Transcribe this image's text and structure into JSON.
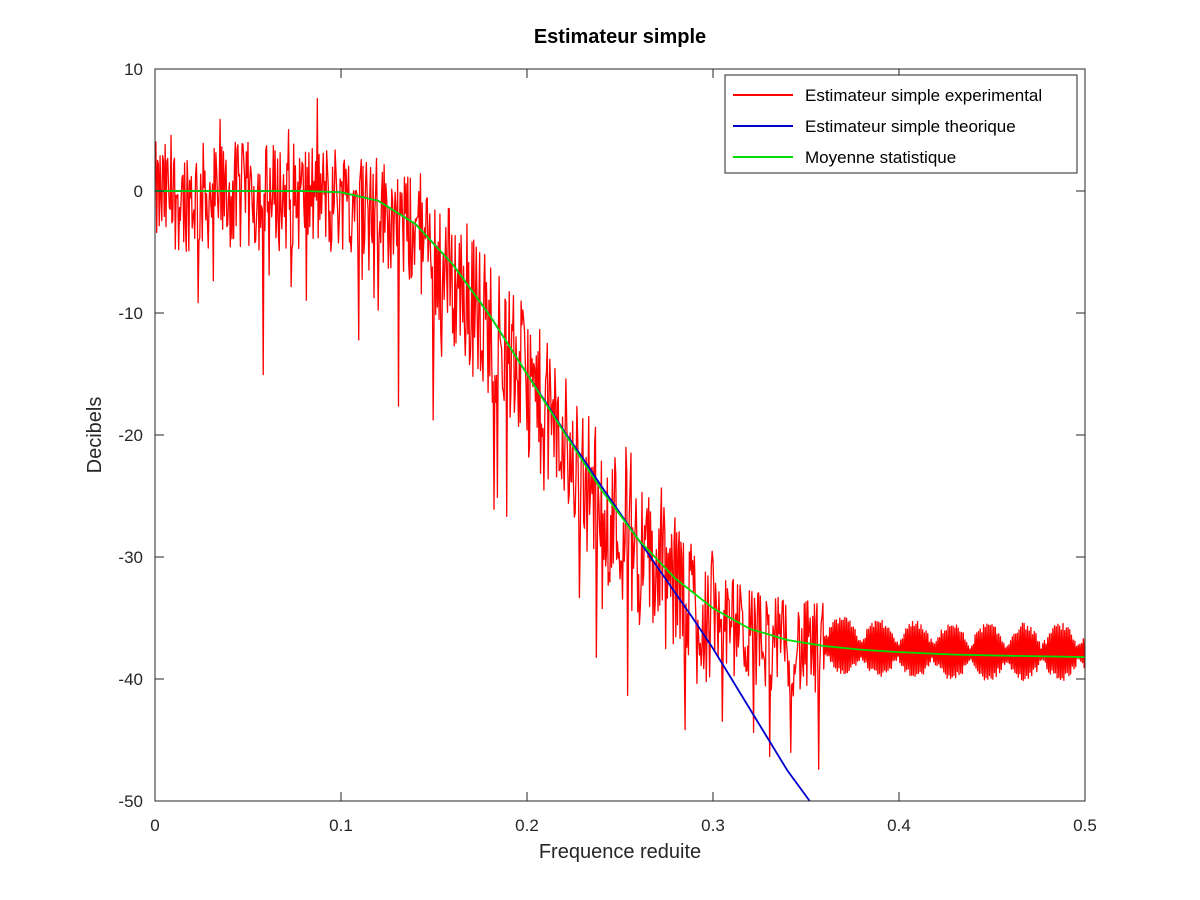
{
  "chart_data": {
    "type": "line",
    "title": "Estimateur simple",
    "xlabel": "Frequence reduite",
    "ylabel": "Decibels",
    "xlim": [
      0,
      0.5
    ],
    "ylim": [
      -50,
      10
    ],
    "xticks": [
      0,
      0.1,
      0.2,
      0.3,
      0.4,
      0.5
    ],
    "xtick_labels": [
      "0",
      "0.1",
      "0.2",
      "0.3",
      "0.4",
      "0.5"
    ],
    "yticks": [
      10,
      0,
      -10,
      -20,
      -30,
      -40,
      -50
    ],
    "ytick_labels": [
      "10",
      "0",
      "-10",
      "-20",
      "-30",
      "-40",
      "-50"
    ],
    "grid": false,
    "legend_position": "top-right",
    "series": [
      {
        "name": "Estimateur simple experimental",
        "color": "#ff0000",
        "style": "noisy",
        "x": [
          0,
          0.02,
          0.04,
          0.06,
          0.08,
          0.1,
          0.12,
          0.14,
          0.16,
          0.18,
          0.2,
          0.22,
          0.24,
          0.26,
          0.28,
          0.3,
          0.32,
          0.34,
          0.36,
          0.38,
          0.4,
          0.42,
          0.44,
          0.46,
          0.48,
          0.5
        ],
        "y": [
          0,
          0,
          0,
          0,
          0,
          0,
          -1,
          -3,
          -6.5,
          -10.5,
          -15,
          -20,
          -25,
          -29,
          -32,
          -34.5,
          -36,
          -37,
          -37.3,
          -37.6,
          -37.8,
          -37.9,
          -38,
          -38,
          -38,
          -38
        ]
      },
      {
        "name": "Estimateur simple theorique",
        "color": "#0000cc",
        "x": [
          0,
          0.04,
          0.08,
          0.1,
          0.12,
          0.14,
          0.16,
          0.18,
          0.2,
          0.21,
          0.22,
          0.23,
          0.24,
          0.25,
          0.26,
          0.27,
          0.28,
          0.29,
          0.3,
          0.31,
          0.32,
          0.33,
          0.34,
          0.352
        ],
        "y": [
          0,
          0,
          0,
          -0.1,
          -0.8,
          -2.7,
          -6,
          -10.2,
          -15,
          -17.3,
          -19.7,
          -21.9,
          -24.2,
          -26.4,
          -28.6,
          -30.8,
          -33,
          -35.2,
          -37.5,
          -40,
          -42.5,
          -45,
          -47.5,
          -50
        ]
      },
      {
        "name": "Moyenne statistique",
        "color": "#00dd00",
        "x": [
          0,
          0.04,
          0.08,
          0.1,
          0.12,
          0.14,
          0.16,
          0.18,
          0.2,
          0.22,
          0.24,
          0.26,
          0.28,
          0.3,
          0.32,
          0.34,
          0.36,
          0.38,
          0.4,
          0.43,
          0.46,
          0.5
        ],
        "y": [
          0,
          0,
          0,
          -0.1,
          -0.8,
          -2.7,
          -6,
          -10.2,
          -15,
          -19.8,
          -24.5,
          -28.6,
          -31.8,
          -34.2,
          -35.9,
          -36.8,
          -37.3,
          -37.6,
          -37.8,
          -38,
          -38.1,
          -38.2
        ]
      }
    ]
  }
}
